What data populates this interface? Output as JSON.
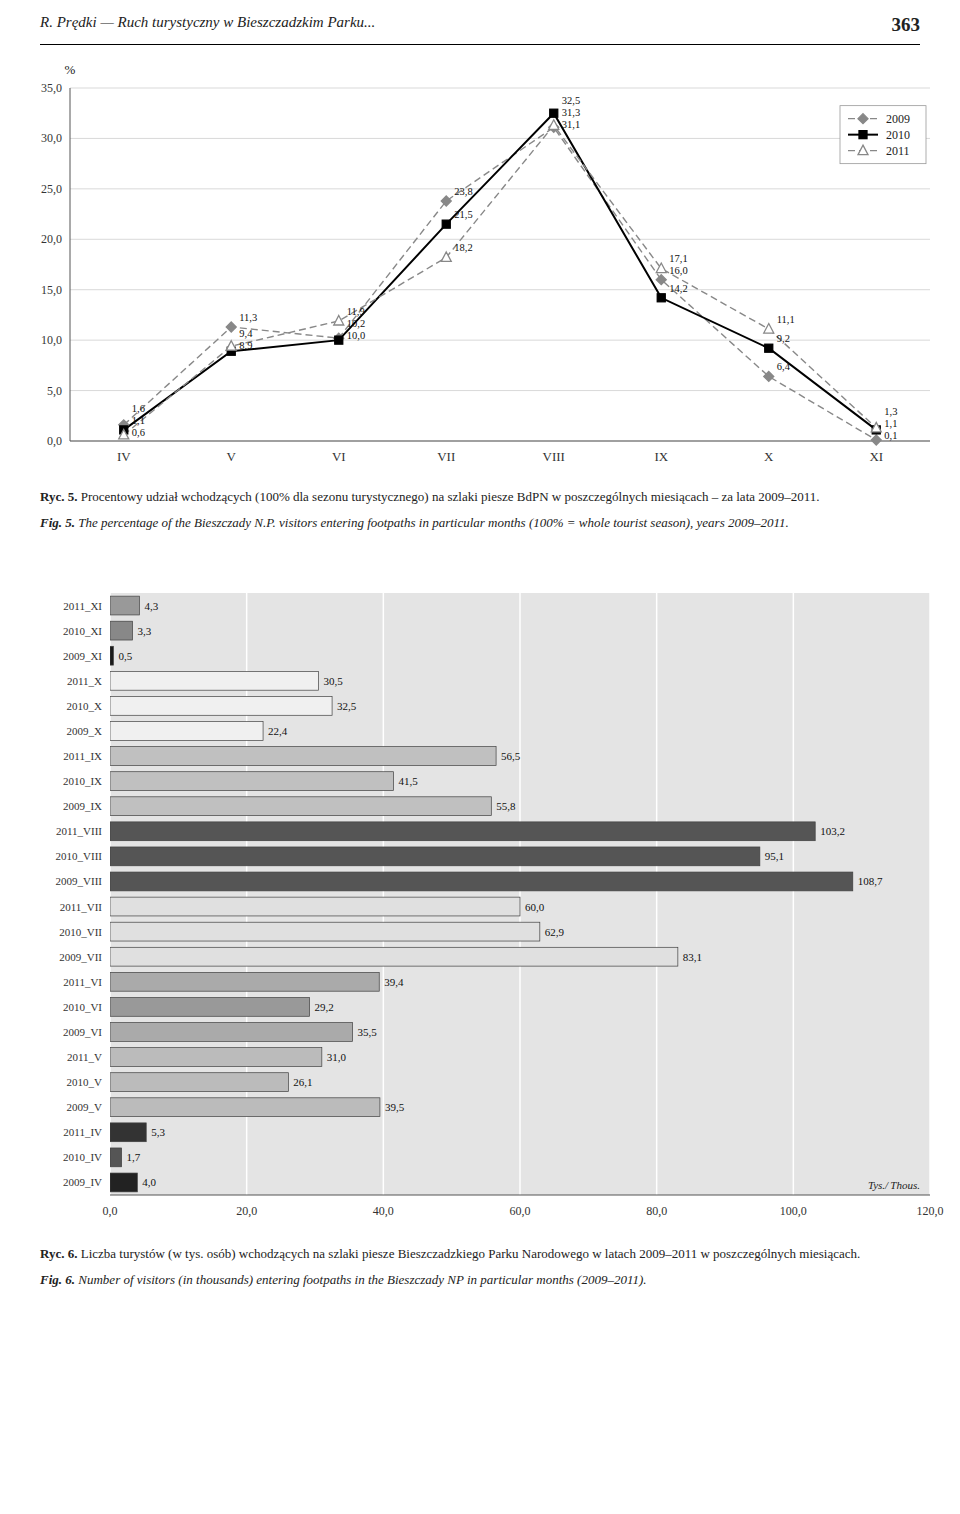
{
  "chart_data": [
    {
      "type": "line",
      "annotations": [
        "R. Prędki — Ruch turystyczny w Bieszczadzkim Parku...",
        "363",
        "Ryc. 5.",
        " Procentowy udział wchodzących (100% dla sezonu turystycznego) na szlaki piesze BdPN w poszczególnych miesiącach – za lata 2009–2011.",
        "Fig. 5.",
        " The percentage of the Bieszczady N.P. visitors entering footpaths in particular months (100% = whole tourist season), years 2009–2011."
      ],
      "y_label": "%",
      "categories": [
        "IV",
        "V",
        "VI",
        "VII",
        "VIII",
        "IX",
        "X",
        "XI"
      ],
      "series": [
        {
          "name": "2009",
          "color": "#888888",
          "line_style": "dashed",
          "marker": "diamond",
          "values": [
            1.6,
            11.3,
            10.2,
            23.8,
            31.1,
            16.0,
            6.4,
            0.1
          ],
          "value_labels": [
            "1,6",
            "11,3",
            "10,2",
            "23,8",
            "31,1",
            "16,0",
            "6,4",
            "0,1"
          ]
        },
        {
          "name": "2010",
          "color": "#000000",
          "line_style": "solid",
          "marker": "square",
          "values": [
            1.1,
            8.9,
            10.0,
            21.5,
            32.5,
            14.2,
            9.2,
            1.1
          ],
          "value_labels": [
            "1,1",
            "8,9",
            "10,0",
            "21,5",
            "32,5",
            "14,2",
            "9,2",
            "1,1"
          ]
        },
        {
          "name": "2011",
          "color": "#888888",
          "line_style": "dashed",
          "marker": "open-triangle",
          "values": [
            0.6,
            9.4,
            11.9,
            18.2,
            31.3,
            17.1,
            11.1,
            1.3
          ],
          "value_labels": [
            "0,6",
            "9,4",
            "11,9",
            "18,2",
            "31,3",
            "17,1",
            "11,1",
            "1,3"
          ]
        }
      ],
      "ylim": [
        0,
        35
      ],
      "yticks": [
        {
          "value": 0.0,
          "label": "0,0"
        },
        {
          "value": 5.0,
          "label": "5,0"
        },
        {
          "value": 10.0,
          "label": "10,0"
        },
        {
          "value": 15.0,
          "label": "15,0"
        },
        {
          "value": 20.0,
          "label": "20,0"
        },
        {
          "value": 25.0,
          "label": "25,0"
        },
        {
          "value": 30.0,
          "label": "30,0"
        },
        {
          "value": 35.0,
          "label": "35,0"
        }
      ],
      "grid": true,
      "legend": "upper right",
      "data_labels": true
    },
    {
      "type": "bar",
      "orientation": "horizontal",
      "annotations": [
        "Tys./ Thous.",
        "Ryc. 6.",
        " Liczba turystów (w tys. osób) wchodzących na szlaki piesze Bieszczadzkiego Parku Narodowego w latach 2009–2011 w poszczególnych miesiącach.",
        "Fig. 6.",
        " Number of visitors (in thousands) entering footpaths in the Bieszczady NP in particular months (2009–2011)."
      ],
      "categories": [
        "2011_XI",
        "2010_XI",
        "2009_XI",
        "2011_X",
        "2010_X",
        "2009_X",
        "2011_IX",
        "2010_IX",
        "2009_IX",
        "2011_VIII",
        "2010_VIII",
        "2009_VIII",
        "2011_VII",
        "2010_VII",
        "2009_VII",
        "2011_VI",
        "2010_VI",
        "2009_VI",
        "2011_V",
        "2010_V",
        "2009_V",
        "2011_IV",
        "2010_IV",
        "2009_IV"
      ],
      "values": [
        4.3,
        3.3,
        0.5,
        30.5,
        32.5,
        22.4,
        56.5,
        41.5,
        55.8,
        103.2,
        95.1,
        108.7,
        60.0,
        62.9,
        83.1,
        39.4,
        29.2,
        35.5,
        31.0,
        26.1,
        39.5,
        5.3,
        1.7,
        4.0
      ],
      "value_labels": [
        "4,3",
        "3,3",
        "0,5",
        "30,5",
        "32,5",
        "22,4",
        "56,5",
        "41,5",
        "55,8",
        "103,2",
        "95,1",
        "108,7",
        "60,0",
        "62,9",
        "83,1",
        "39,4",
        "29,2",
        "35,5",
        "31,0",
        "26,1",
        "39,5",
        "5,3",
        "1,7",
        "4,0"
      ],
      "colors": [
        "#999999",
        "#888888",
        "#1a1a1a",
        "#f0f0f0",
        "#f0f0f0",
        "#f0f0f0",
        "#c0c0c0",
        "#c0c0c0",
        "#c0c0c0",
        "#555555",
        "#555555",
        "#555555",
        "#e0e0e0",
        "#e0e0e0",
        "#e0e0e0",
        "#aaaaaa",
        "#999999",
        "#aaaaaa",
        "#bbbbbb",
        "#bbbbbb",
        "#bbbbbb",
        "#333333",
        "#555555",
        "#222222"
      ],
      "xlim": [
        0,
        120
      ],
      "xticks": [
        {
          "value": 0.0,
          "label": "0,0"
        },
        {
          "value": 20.0,
          "label": "20,0"
        },
        {
          "value": 40.0,
          "label": "40,0"
        },
        {
          "value": 60.0,
          "label": "60,0"
        },
        {
          "value": 80.0,
          "label": "80,0"
        },
        {
          "value": 100.0,
          "label": "100,0"
        },
        {
          "value": 120.0,
          "label": "120,0"
        }
      ],
      "grid": true,
      "data_labels": true
    }
  ]
}
